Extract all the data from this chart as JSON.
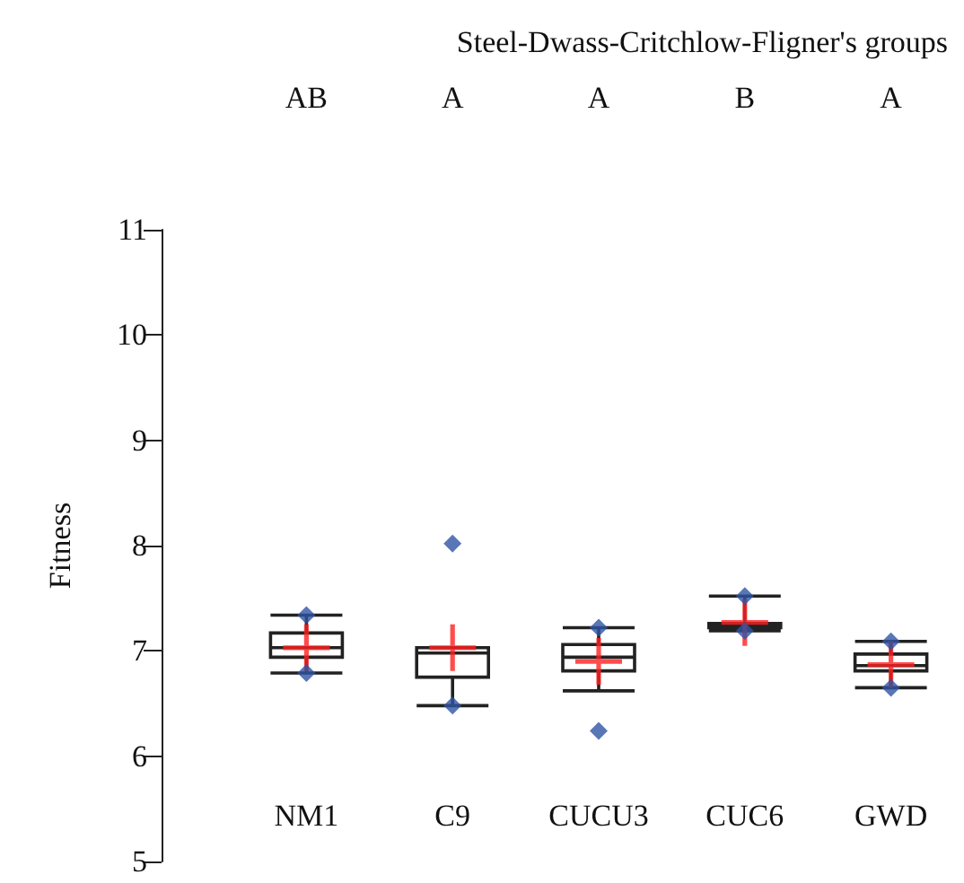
{
  "chart_data": {
    "type": "box",
    "title": "Steel-Dwass-Critchlow-Fligner's groups",
    "ylabel": "Fitness",
    "categories": [
      "NM1",
      "C9",
      "CUCU3",
      "CUC6",
      "GWD"
    ],
    "boxes": [
      {
        "low": 6.79,
        "q1": 6.94,
        "median": 7.03,
        "q3": 7.17,
        "high": 7.34,
        "mean": 7.03,
        "outliers": [
          7.34,
          6.79
        ]
      },
      {
        "low": 6.48,
        "q1": 6.75,
        "median": 6.98,
        "q3": 7.03,
        "high": 7.03,
        "mean": 7.03,
        "outliers": [
          8.02,
          6.48
        ]
      },
      {
        "low": 6.62,
        "q1": 6.81,
        "median": 6.94,
        "q3": 7.06,
        "high": 7.22,
        "mean": 6.9,
        "outliers": [
          7.22,
          6.24
        ]
      },
      {
        "low": 7.19,
        "q1": 7.22,
        "median": 7.24,
        "q3": 7.26,
        "high": 7.52,
        "mean": 7.27,
        "outliers": [
          7.52,
          7.19
        ]
      },
      {
        "low": 6.65,
        "q1": 6.81,
        "median": 6.86,
        "q3": 6.97,
        "high": 7.09,
        "mean": 6.87,
        "outliers": [
          7.09,
          6.65
        ]
      }
    ],
    "ylim": [
      5,
      11
    ],
    "yticks": [
      5,
      6,
      7,
      8,
      9,
      10,
      11
    ],
    "marker": "diamond",
    "grid": false,
    "annotations": [
      "AB",
      "A",
      "A",
      "B",
      "A"
    ]
  }
}
